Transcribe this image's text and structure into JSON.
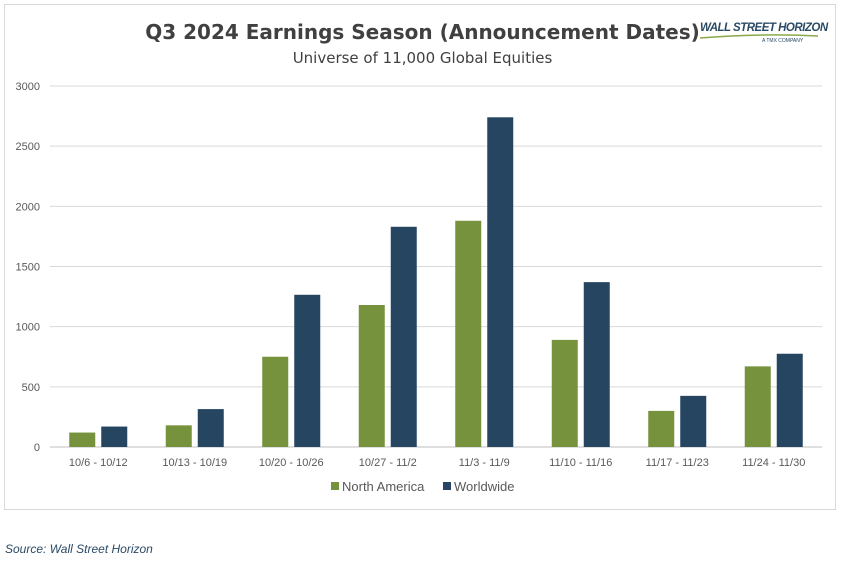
{
  "colors": {
    "north_america": "#76923c",
    "worldwide": "#254561",
    "grid": "#d9d9d9"
  },
  "logo": {
    "main": "WALL STREET HORIZON",
    "sub": "A TMX COMPANY"
  },
  "source": "Source: Wall Street Horizon",
  "chart_data": {
    "type": "bar",
    "title": "Q3 2024 Earnings Season (Announcement Dates)",
    "subtitle": "Universe of 11,000 Global Equities",
    "categories": [
      "10/6 - 10/12",
      "10/13 - 10/19",
      "10/20 - 10/26",
      "10/27 - 11/2",
      "11/3 - 11/9",
      "11/10 - 11/16",
      "11/17 - 11/23",
      "11/24 - 11/30"
    ],
    "series": [
      {
        "name": "North America",
        "values": [
          120,
          180,
          750,
          1180,
          1880,
          890,
          300,
          670
        ]
      },
      {
        "name": "Worldwide",
        "values": [
          170,
          315,
          1265,
          1830,
          2740,
          1370,
          425,
          775
        ]
      }
    ],
    "ylim": [
      0,
      3000
    ],
    "yticks": [
      0,
      500,
      1000,
      1500,
      2000,
      2500,
      3000
    ],
    "grid": true,
    "legend": "bottom"
  }
}
